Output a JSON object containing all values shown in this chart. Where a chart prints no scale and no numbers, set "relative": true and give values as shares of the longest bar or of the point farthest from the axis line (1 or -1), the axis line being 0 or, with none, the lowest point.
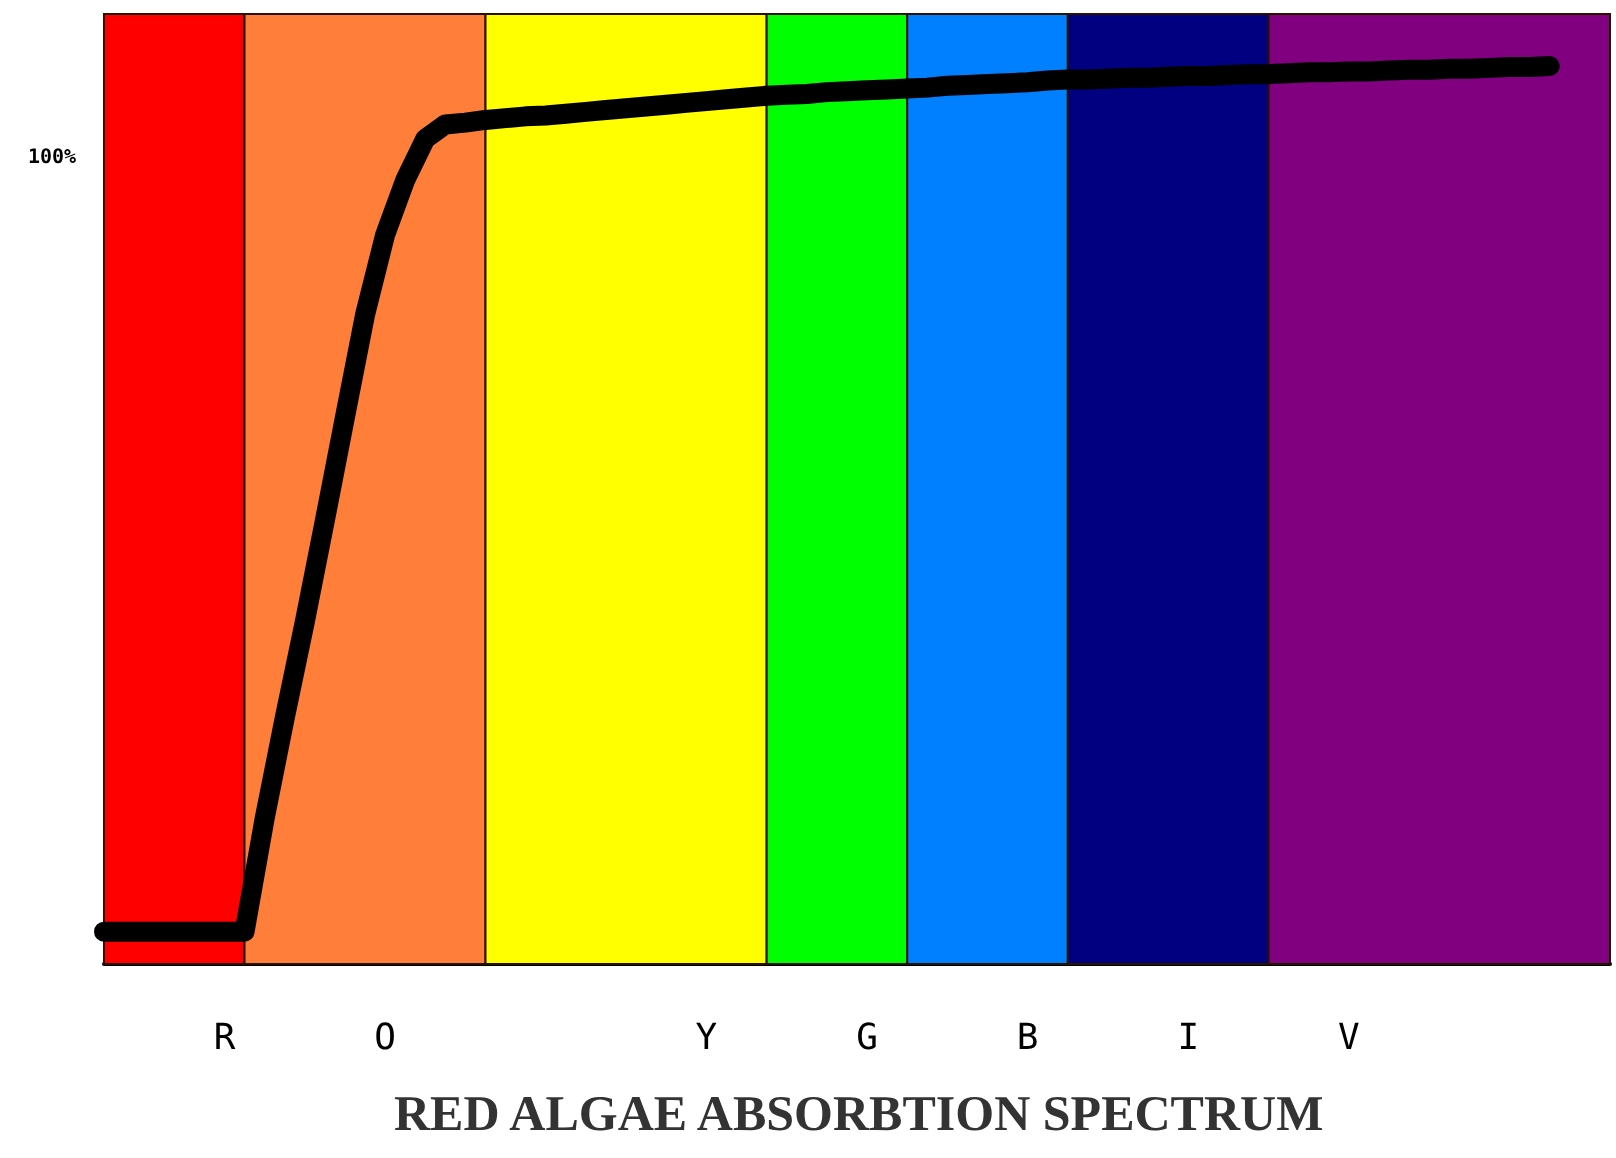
{
  "chart_data": {
    "type": "line",
    "title": "RED ALGAE ABSORBTION SPECTRUM",
    "relative": true,
    "categories": [
      null,
      null,
      null,
      null,
      null,
      null,
      "R",
      null,
      null,
      null,
      null,
      null,
      null,
      null,
      "O",
      null,
      null,
      null,
      null,
      null,
      null,
      null,
      null,
      null,
      null,
      null,
      null,
      null,
      null,
      null,
      "Y",
      null,
      null,
      null,
      null,
      null,
      null,
      null,
      "G",
      null,
      null,
      null,
      null,
      null,
      null,
      null,
      "B",
      null,
      null,
      null,
      null,
      null,
      null,
      null,
      "I",
      null,
      null,
      null,
      null,
      null,
      null,
      null,
      "V",
      null,
      null,
      null,
      null,
      null,
      null,
      null,
      null,
      null,
      null,
      null,
      null,
      null
    ],
    "series": [
      {
        "color": "#000000",
        "values": [
          0.036,
          0.036,
          0.036,
          0.036,
          0.036,
          0.036,
          0.036,
          0.036,
          0.162,
          0.274,
          0.381,
          0.494,
          0.609,
          0.723,
          0.812,
          0.873,
          0.919,
          0.935,
          0.937,
          0.94,
          0.942,
          0.944,
          0.945,
          0.947,
          0.949,
          0.951,
          0.953,
          0.955,
          0.957,
          0.959,
          0.961,
          0.963,
          0.965,
          0.967,
          0.968,
          0.969,
          0.971,
          0.972,
          0.973,
          0.974,
          0.975,
          0.976,
          0.978,
          0.979,
          0.98,
          0.981,
          0.982,
          0.984,
          0.985,
          0.985,
          0.986,
          0.987,
          0.987,
          0.988,
          0.989,
          0.989,
          0.99,
          0.991,
          0.991,
          0.992,
          0.993,
          0.993,
          0.994,
          0.994,
          0.995,
          0.996,
          0.996,
          0.997,
          0.997,
          0.998,
          0.999,
          0.999,
          1.0,
          null,
          null,
          null
        ]
      }
    ],
    "annotations": [
      "100%"
    ],
    "line_style": "solid"
  }
}
